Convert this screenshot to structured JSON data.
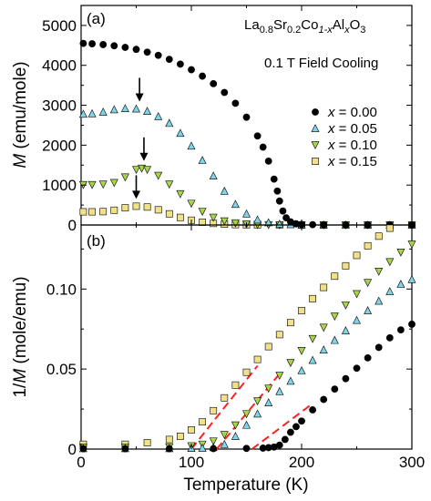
{
  "chart_data": [
    {
      "panel_label": "(a)",
      "type": "scatter",
      "title": "",
      "xlabel": "",
      "ylabel": "M (emu/mole)",
      "ylabel_parts": {
        "symbol": "M",
        "unit": " (emu/mole)"
      },
      "xlim": [
        0,
        300
      ],
      "ylim": [
        0,
        5500
      ],
      "xticks": [
        0,
        100,
        200,
        300
      ],
      "yticks": [
        0,
        1000,
        2000,
        3000,
        4000,
        5000
      ],
      "ytick_labels": [
        "0",
        "1000",
        "2000",
        "3000",
        "4000",
        "5000"
      ],
      "grid": false,
      "legend_position": "right",
      "annotations": {
        "compound": {
          "La": "La",
          "la_sub": "0.8",
          "Sr": "Sr",
          "sr_sub": "0.2",
          "Co": "Co",
          "co_sub": "1-x",
          "Al": "Al",
          "al_sub": "x",
          "O": "O",
          "o_sub": "3"
        },
        "field_note": "0.1 T  Field Cooling",
        "arrows_at_x": [
          53,
          57,
          50
        ]
      },
      "series": [
        {
          "name": "x = 0.00",
          "x_var": "x",
          "x_value": " = 0.00",
          "marker": "circle",
          "color": "#000000",
          "x": [
            2,
            10,
            20,
            30,
            40,
            50,
            60,
            70,
            80,
            90,
            100,
            110,
            120,
            130,
            140,
            150,
            160,
            165,
            170,
            175,
            178,
            180,
            183,
            186,
            190,
            195,
            200,
            210,
            220,
            240,
            260,
            280,
            300
          ],
          "y": [
            4550,
            4540,
            4520,
            4490,
            4450,
            4400,
            4330,
            4250,
            4150,
            4030,
            3890,
            3730,
            3540,
            3320,
            3050,
            2700,
            2230,
            1950,
            1600,
            1150,
            850,
            600,
            350,
            180,
            80,
            30,
            15,
            8,
            5,
            3,
            2,
            1,
            1
          ]
        },
        {
          "name": "x = 0.05",
          "x_var": "x",
          "x_value": " = 0.05",
          "marker": "triangle-up",
          "color": "#7fd4e8",
          "x": [
            2,
            10,
            20,
            30,
            40,
            50,
            60,
            70,
            80,
            90,
            100,
            110,
            120,
            130,
            140,
            150,
            160,
            170,
            180,
            190,
            200,
            220,
            240,
            260,
            280,
            300
          ],
          "y": [
            2780,
            2790,
            2830,
            2890,
            2920,
            2910,
            2850,
            2720,
            2550,
            2300,
            1980,
            1620,
            1230,
            850,
            520,
            280,
            130,
            60,
            25,
            12,
            6,
            3,
            2,
            1,
            1,
            1
          ]
        },
        {
          "name": "x = 0.10",
          "x_var": "x",
          "x_value": " = 0.10",
          "marker": "triangle-down",
          "color": "#a8d44a",
          "x": [
            2,
            10,
            20,
            30,
            40,
            50,
            55,
            60,
            70,
            80,
            90,
            100,
            110,
            120,
            130,
            140,
            150,
            160,
            170,
            180,
            200,
            220,
            240,
            260,
            280,
            300
          ],
          "y": [
            1010,
            1010,
            1020,
            1060,
            1200,
            1390,
            1420,
            1390,
            1240,
            1020,
            780,
            540,
            340,
            190,
            100,
            50,
            25,
            12,
            6,
            3,
            2,
            1,
            1,
            1,
            1,
            1
          ]
        },
        {
          "name": "x = 0.15",
          "x_var": "x",
          "x_value": " = 0.15",
          "marker": "square",
          "color": "#f0e08a",
          "x": [
            2,
            10,
            20,
            30,
            40,
            50,
            60,
            70,
            80,
            90,
            100,
            110,
            120,
            130,
            140,
            150,
            160,
            180,
            200,
            220,
            240,
            260,
            280,
            300
          ],
          "y": [
            330,
            330,
            335,
            370,
            430,
            470,
            450,
            380,
            280,
            190,
            120,
            70,
            40,
            20,
            10,
            5,
            3,
            2,
            1,
            1,
            1,
            1,
            1,
            1
          ]
        }
      ]
    },
    {
      "panel_label": "(b)",
      "type": "scatter",
      "title": "",
      "xlabel": "Temperature (K)",
      "ylabel": "1/M (mole/emu)",
      "ylabel_parts": {
        "prefix": "1/",
        "symbol": "M",
        "unit": " (mole/emu)"
      },
      "xlim": [
        0,
        300
      ],
      "ylim": [
        0,
        0.14
      ],
      "xticks": [
        0,
        100,
        200,
        300
      ],
      "xtick_labels": [
        "0",
        "100",
        "200",
        "300"
      ],
      "yticks": [
        0,
        0.05,
        0.1
      ],
      "ytick_labels": [
        "0",
        "0.05",
        "0.10"
      ],
      "grid": false,
      "fit_lines": [
        {
          "color": "#ff2020",
          "style": "dashed",
          "x": [
            100,
            160
          ],
          "y": [
            0,
            0.052
          ]
        },
        {
          "color": "#ff2020",
          "style": "dashed",
          "x": [
            123,
            180
          ],
          "y": [
            0,
            0.047
          ]
        },
        {
          "color": "#ff2020",
          "style": "dashed",
          "x": [
            155,
            210
          ],
          "y": [
            0,
            0.0285
          ]
        }
      ],
      "series": [
        {
          "name": "x = 0.00",
          "marker": "circle",
          "color": "#000000",
          "x": [
            2,
            40,
            80,
            120,
            150,
            165,
            170,
            175,
            180,
            185,
            190,
            195,
            200,
            210,
            220,
            230,
            240,
            250,
            260,
            270,
            280,
            290,
            300
          ],
          "y": [
            0.0002,
            0.0002,
            0.0002,
            0.0003,
            0.0004,
            0.0006,
            0.0009,
            0.0013,
            0.0025,
            0.006,
            0.0105,
            0.014,
            0.0175,
            0.0245,
            0.031,
            0.0375,
            0.044,
            0.0505,
            0.057,
            0.0635,
            0.0695,
            0.0745,
            0.078
          ]
        },
        {
          "name": "x = 0.05",
          "marker": "triangle-up",
          "color": "#7fd4e8",
          "x": [
            2,
            40,
            80,
            100,
            110,
            120,
            130,
            140,
            150,
            160,
            170,
            180,
            190,
            200,
            210,
            220,
            230,
            240,
            250,
            260,
            270,
            280,
            290,
            300
          ],
          "y": [
            0.0004,
            0.0004,
            0.0004,
            0.0005,
            0.0006,
            0.001,
            0.003,
            0.008,
            0.015,
            0.022,
            0.029,
            0.036,
            0.0425,
            0.049,
            0.0555,
            0.062,
            0.068,
            0.074,
            0.0805,
            0.0865,
            0.0925,
            0.0985,
            0.103,
            0.106
          ]
        },
        {
          "name": "x = 0.10",
          "marker": "triangle-down",
          "color": "#a8d44a",
          "x": [
            2,
            40,
            80,
            100,
            110,
            120,
            130,
            140,
            150,
            160,
            170,
            180,
            190,
            200,
            210,
            220,
            230,
            240,
            250,
            260,
            270,
            280,
            290,
            300
          ],
          "y": [
            0.001,
            0.001,
            0.0013,
            0.002,
            0.003,
            0.005,
            0.009,
            0.015,
            0.022,
            0.03,
            0.038,
            0.046,
            0.054,
            0.0615,
            0.069,
            0.076,
            0.083,
            0.09,
            0.097,
            0.104,
            0.111,
            0.117,
            0.123,
            0.128
          ]
        },
        {
          "name": "x = 0.15",
          "marker": "square",
          "color": "#f0e08a",
          "x": [
            2,
            40,
            60,
            80,
            90,
            100,
            110,
            120,
            130,
            140,
            150,
            160,
            170,
            180,
            190,
            200,
            210,
            220,
            230,
            240,
            250,
            260,
            270,
            280,
            290,
            300
          ],
          "y": [
            0.003,
            0.003,
            0.004,
            0.006,
            0.008,
            0.012,
            0.017,
            0.024,
            0.032,
            0.04,
            0.048,
            0.056,
            0.064,
            0.0715,
            0.079,
            0.0865,
            0.094,
            0.101,
            0.108,
            0.1145,
            0.121,
            0.127,
            0.133,
            0.138,
            0.141,
            0.143
          ]
        }
      ]
    }
  ]
}
